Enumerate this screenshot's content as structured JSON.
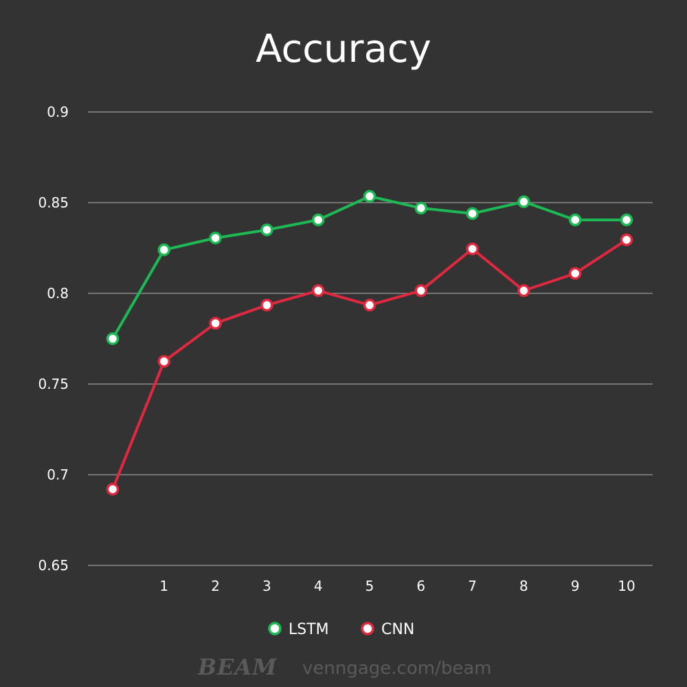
{
  "chart_data": {
    "type": "line",
    "title": "Accuracy",
    "x": [
      "",
      "1",
      "2",
      "3",
      "4",
      "5",
      "6",
      "7",
      "8",
      "9",
      "10"
    ],
    "ylim": [
      0.65,
      0.9
    ],
    "yticks": [
      "0.9",
      "0.85",
      "0.8",
      "0.75",
      "0.7",
      "0.65"
    ],
    "yticks_values": [
      0.9,
      0.85,
      0.8,
      0.75,
      0.7,
      0.65
    ],
    "grid": true,
    "legend_position": "bottom",
    "series": [
      {
        "name": "LSTM",
        "color": "#1db954",
        "values": [
          0.775,
          0.824,
          0.8305,
          0.835,
          0.8405,
          0.8535,
          0.847,
          0.844,
          0.8505,
          0.8405,
          0.8405
        ]
      },
      {
        "name": "CNN",
        "color": "#e0283f",
        "values": [
          0.692,
          0.7625,
          0.7835,
          0.7935,
          0.8015,
          0.7935,
          0.8015,
          0.8245,
          0.8015,
          0.811,
          0.8295
        ]
      }
    ]
  },
  "watermark": {
    "logo": "BEAM",
    "url": "venngage.com/beam"
  }
}
